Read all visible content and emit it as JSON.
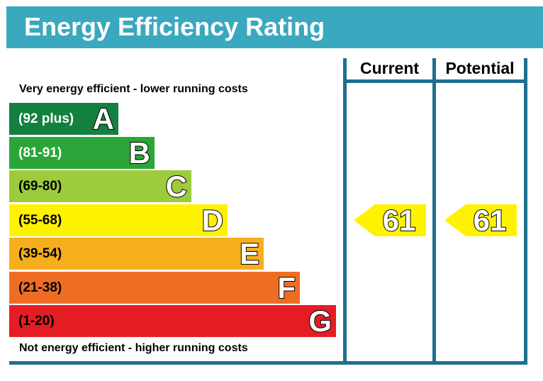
{
  "title": "Energy Efficiency Rating",
  "captions": {
    "top": "Very energy efficient - lower running costs",
    "bottom": "Not energy efficient - higher running costs"
  },
  "columns": {
    "current": "Current",
    "potential": "Potential"
  },
  "chart_data": {
    "type": "bar",
    "bands": [
      {
        "letter": "A",
        "range": "(92 plus)",
        "color": "#13803f",
        "text_color": "#ffffff"
      },
      {
        "letter": "B",
        "range": "(81-91)",
        "color": "#2aa537",
        "text_color": "#ffffff"
      },
      {
        "letter": "C",
        "range": "(69-80)",
        "color": "#9dcb3b",
        "text_color": "#000000"
      },
      {
        "letter": "D",
        "range": "(55-68)",
        "color": "#fff200",
        "text_color": "#000000"
      },
      {
        "letter": "E",
        "range": "(39-54)",
        "color": "#f7ae1d",
        "text_color": "#000000"
      },
      {
        "letter": "F",
        "range": "(21-38)",
        "color": "#ee6d25",
        "text_color": "#000000"
      },
      {
        "letter": "G",
        "range": "(1-20)",
        "color": "#e31d23",
        "text_color": "#000000"
      }
    ],
    "current": {
      "value": 61,
      "band": "D",
      "color": "#fff200"
    },
    "potential": {
      "value": 61,
      "band": "D",
      "color": "#fff200"
    }
  }
}
